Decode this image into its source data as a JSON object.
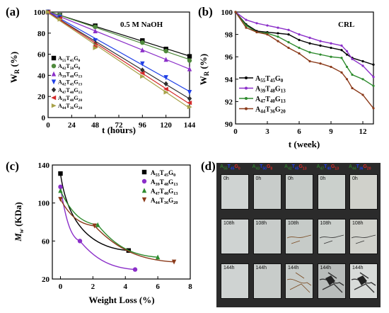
{
  "panels": {
    "a": {
      "label": "(a)",
      "condition": "0.5 M NaOH",
      "xlabel": "t (hours)",
      "ylabel": "W",
      "ylabel_sub": "R",
      "ylabel_unit": " (%)"
    },
    "b": {
      "label": "(b)",
      "condition": "CRL",
      "xlabel": "t (week)",
      "ylabel": "W",
      "ylabel_sub": "R",
      "ylabel_unit": " (%)"
    },
    "c": {
      "label": "(c)",
      "xlabel": "Weight Loss (%)",
      "ylabel": "M",
      "ylabel_sub": "w",
      "ylabel_unit": " (KDa)"
    },
    "d": {
      "label": "(d)"
    }
  },
  "chart_data": [
    {
      "panel": "a",
      "type": "scatter",
      "xlim": [
        0,
        144
      ],
      "ylim": [
        0,
        100
      ],
      "xticks": [
        "0",
        "24",
        "48",
        "72",
        "96",
        "120",
        "144"
      ],
      "yticks": [
        "0",
        "20",
        "40",
        "60",
        "80",
        "100"
      ],
      "legend_position": "bottom-left",
      "series": [
        {
          "name": "A55T45G0",
          "color": "#000000",
          "marker": "square",
          "x": [
            0,
            12,
            48,
            96,
            120,
            144
          ],
          "y": [
            100,
            97,
            87,
            73,
            65,
            58
          ]
        },
        {
          "name": "A42T50G8",
          "color": "#4f8a3c",
          "marker": "circle",
          "x": [
            0,
            12,
            48,
            96,
            120,
            144
          ],
          "y": [
            100,
            97,
            86,
            71,
            63,
            54
          ]
        },
        {
          "name": "A39T48G13",
          "color": "#8b2fc9",
          "marker": "triangle",
          "x": [
            0,
            12,
            48,
            96,
            120,
            144
          ],
          "y": [
            100,
            96,
            82,
            64,
            55,
            46
          ]
        },
        {
          "name": "A42T45G13",
          "color": "#1f3fe6",
          "marker": "triangle-down",
          "x": [
            0,
            12,
            48,
            96,
            120,
            144
          ],
          "y": [
            100,
            95,
            73,
            51,
            38,
            24
          ]
        },
        {
          "name": "A47T40G13",
          "color": "#2f2f2f",
          "marker": "diamond",
          "x": [
            0,
            12,
            48,
            96,
            120,
            144
          ],
          "y": [
            100,
            94,
            70,
            45,
            32,
            18
          ]
        },
        {
          "name": "A39T48G20",
          "color": "#d42a2a",
          "marker": "triangle-left",
          "x": [
            0,
            12,
            48,
            96,
            120,
            144
          ],
          "y": [
            100,
            94,
            68,
            42,
            27,
            14
          ]
        },
        {
          "name": "A44T36G20",
          "color": "#a8a24a",
          "marker": "triangle-right",
          "x": [
            0,
            12,
            48,
            96,
            120,
            144
          ],
          "y": [
            100,
            93,
            66,
            39,
            24,
            10
          ]
        }
      ]
    },
    {
      "panel": "b",
      "type": "line",
      "xlim": [
        0,
        13
      ],
      "ylim": [
        90,
        100
      ],
      "xticks": [
        "0",
        "3",
        "6",
        "9",
        "12"
      ],
      "yticks": [
        "90",
        "92",
        "94",
        "96",
        "98",
        "100"
      ],
      "legend_position": "bottom-left",
      "series": [
        {
          "name": "A55T45G0",
          "color": "#000000",
          "x": [
            0,
            1,
            2,
            3,
            4,
            5,
            6,
            7,
            8,
            9,
            10,
            10.5,
            11,
            12,
            13
          ],
          "y": [
            100,
            98.9,
            98.3,
            98.2,
            98.1,
            98.0,
            97.5,
            97.2,
            97.0,
            96.8,
            96.6,
            96.2,
            95.9,
            95.6,
            95.3
          ]
        },
        {
          "name": "A39T48G13",
          "color": "#8b2fc9",
          "x": [
            0,
            1,
            2,
            3,
            4,
            5,
            6,
            7,
            8,
            9,
            10,
            10.5,
            11,
            12,
            13
          ],
          "y": [
            100,
            99.3,
            99.0,
            98.8,
            98.6,
            98.4,
            98.0,
            97.7,
            97.4,
            97.2,
            97.0,
            96.5,
            95.8,
            95.2,
            94.2
          ]
        },
        {
          "name": "A47T40G13",
          "color": "#2e8b2e",
          "x": [
            0,
            1,
            2,
            3,
            4,
            5,
            6,
            7,
            8,
            9,
            10,
            10.5,
            11,
            12,
            13
          ],
          "y": [
            100,
            98.8,
            98.2,
            98.1,
            97.8,
            97.3,
            96.8,
            96.4,
            96.2,
            96.0,
            95.9,
            95.1,
            94.4,
            94.0,
            93.4
          ]
        },
        {
          "name": "A44T36G20",
          "color": "#8b3a1a",
          "x": [
            0,
            1,
            2,
            3,
            4,
            5,
            6,
            7,
            8,
            9,
            10,
            10.5,
            11,
            12,
            13
          ],
          "y": [
            100,
            98.6,
            98.2,
            98.0,
            97.4,
            96.8,
            96.3,
            95.6,
            95.4,
            95.1,
            94.6,
            94.0,
            93.2,
            92.6,
            91.4
          ]
        }
      ]
    },
    {
      "panel": "c",
      "type": "scatter",
      "xlim": [
        -0.5,
        8
      ],
      "ylim": [
        20,
        140
      ],
      "xticks": [
        "0",
        "2",
        "4",
        "6",
        "8"
      ],
      "yticks": [
        "20",
        "60",
        "100",
        "140"
      ],
      "legend_position": "top-right",
      "series": [
        {
          "name": "A55T45G0",
          "color": "#000000",
          "marker": "square",
          "x": [
            0,
            4.2
          ],
          "y": [
            131,
            50
          ]
        },
        {
          "name": "A39T48G13",
          "color": "#8b2fc9",
          "marker": "circle",
          "x": [
            0,
            1.2,
            4.6
          ],
          "y": [
            117,
            60,
            30
          ]
        },
        {
          "name": "A47T40G13",
          "color": "#2e8b2e",
          "marker": "triangle",
          "x": [
            0,
            2.3,
            6.0
          ],
          "y": [
            113,
            77,
            43
          ]
        },
        {
          "name": "A44T36G20",
          "color": "#8b3a1a",
          "marker": "triangle-down",
          "x": [
            0,
            2.1,
            7.0
          ],
          "y": [
            104,
            76,
            38
          ]
        }
      ]
    }
  ],
  "photos": {
    "columns": [
      "A55T45G0",
      "A43T50G8",
      "A42T45G13",
      "A47T40G13",
      "A44T36G20"
    ],
    "column_colors": [
      "#2f6e2f",
      "#1f3fe6",
      "#d42a2a",
      "#2f8a2f",
      "#2f2fd4"
    ],
    "rows": [
      "0h",
      "108h",
      "144h"
    ]
  }
}
